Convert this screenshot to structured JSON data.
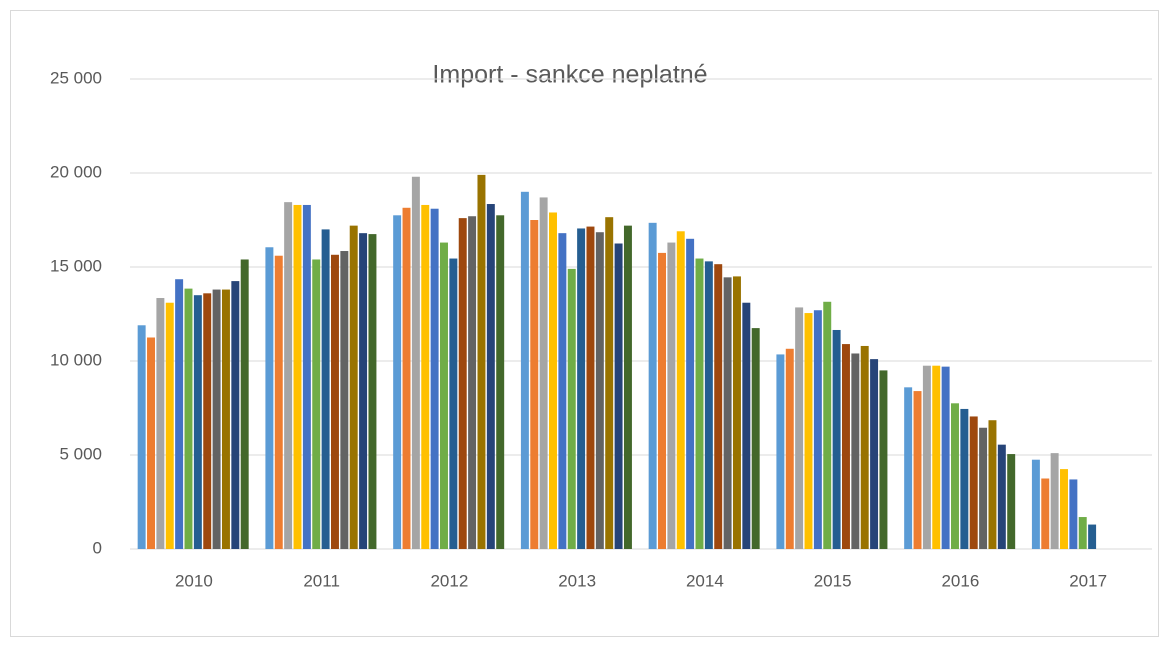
{
  "chart_data": {
    "type": "bar",
    "title": "Import - sankce neplatné",
    "categories": [
      "2010",
      "2011",
      "2012",
      "2013",
      "2014",
      "2015",
      "2016",
      "2017"
    ],
    "series": [
      {
        "color": "#5b9bd5",
        "values": [
          11900,
          16050,
          17750,
          19000,
          17350,
          10350,
          8600,
          4750
        ]
      },
      {
        "color": "#ed7d31",
        "values": [
          11250,
          15600,
          18150,
          17500,
          15750,
          10650,
          8400,
          3750
        ]
      },
      {
        "color": "#a5a5a5",
        "values": [
          13350,
          18450,
          19800,
          18700,
          16300,
          12850,
          9750,
          5100
        ]
      },
      {
        "color": "#ffc000",
        "values": [
          13100,
          18300,
          18300,
          17900,
          16900,
          12550,
          9750,
          4250
        ]
      },
      {
        "color": "#4472c4",
        "values": [
          14350,
          18300,
          18100,
          16800,
          16500,
          12700,
          9700,
          3700
        ]
      },
      {
        "color": "#70ad47",
        "values": [
          13850,
          15400,
          16300,
          14900,
          15450,
          13150,
          7750,
          1700
        ]
      },
      {
        "color": "#255e91",
        "values": [
          13500,
          17000,
          15450,
          17050,
          15300,
          11650,
          7450,
          1300
        ]
      },
      {
        "color": "#9e480e",
        "values": [
          13600,
          15650,
          17600,
          17150,
          15150,
          10900,
          7050,
          null
        ]
      },
      {
        "color": "#636363",
        "values": [
          13800,
          15850,
          17700,
          16850,
          14450,
          10400,
          6450,
          null
        ]
      },
      {
        "color": "#997300",
        "values": [
          13800,
          17200,
          19900,
          17650,
          14500,
          10800,
          6850,
          null
        ]
      },
      {
        "color": "#264478",
        "values": [
          14250,
          16800,
          18350,
          16250,
          13100,
          10100,
          5550,
          null
        ]
      },
      {
        "color": "#43682b",
        "values": [
          15400,
          16750,
          17750,
          17200,
          11750,
          9500,
          5050,
          null
        ]
      }
    ],
    "ylim": [
      0,
      25000
    ],
    "yticks": [
      0,
      {
        "value": 5000,
        "label": "5 000"
      },
      {
        "value": 10000,
        "label": "10 000"
      },
      {
        "value": 15000,
        "label": "15 000"
      },
      {
        "value": 20000,
        "label": "20 000"
      },
      {
        "value": 25000,
        "label": "25 000"
      }
    ],
    "grid": true
  }
}
